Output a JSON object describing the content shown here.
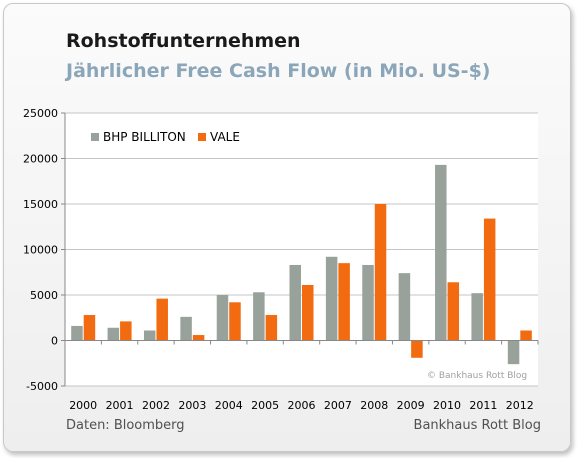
{
  "title": "Rohstoffunternehmen",
  "subtitle": "Jährlicher Free Cash Flow (in Mio. US-$)",
  "source": "Daten: Bloomberg",
  "credit": "Bankhaus Rott Blog",
  "watermark": "© Bankhaus Rott Blog",
  "colors": {
    "series_0": "#98a29b",
    "series_1": "#f26b10"
  },
  "chart_data": {
    "type": "bar",
    "categories": [
      "2000",
      "2001",
      "2002",
      "2003",
      "2004",
      "2005",
      "2006",
      "2007",
      "2008",
      "2009",
      "2010",
      "2011",
      "2012"
    ],
    "series": [
      {
        "name": "BHP BILLITON",
        "values": [
          1600,
          1400,
          1100,
          2600,
          5000,
          5300,
          8300,
          9200,
          8300,
          7400,
          19300,
          5200,
          -2600
        ]
      },
      {
        "name": "VALE",
        "values": [
          2800,
          2100,
          4600,
          600,
          4200,
          2800,
          6100,
          8500,
          15000,
          -1900,
          6400,
          13400,
          1100
        ]
      }
    ],
    "ylim": [
      -5000,
      25000
    ],
    "yticks": [
      -5000,
      0,
      5000,
      10000,
      15000,
      20000,
      25000
    ],
    "grid": "y",
    "legend": "top-left"
  }
}
